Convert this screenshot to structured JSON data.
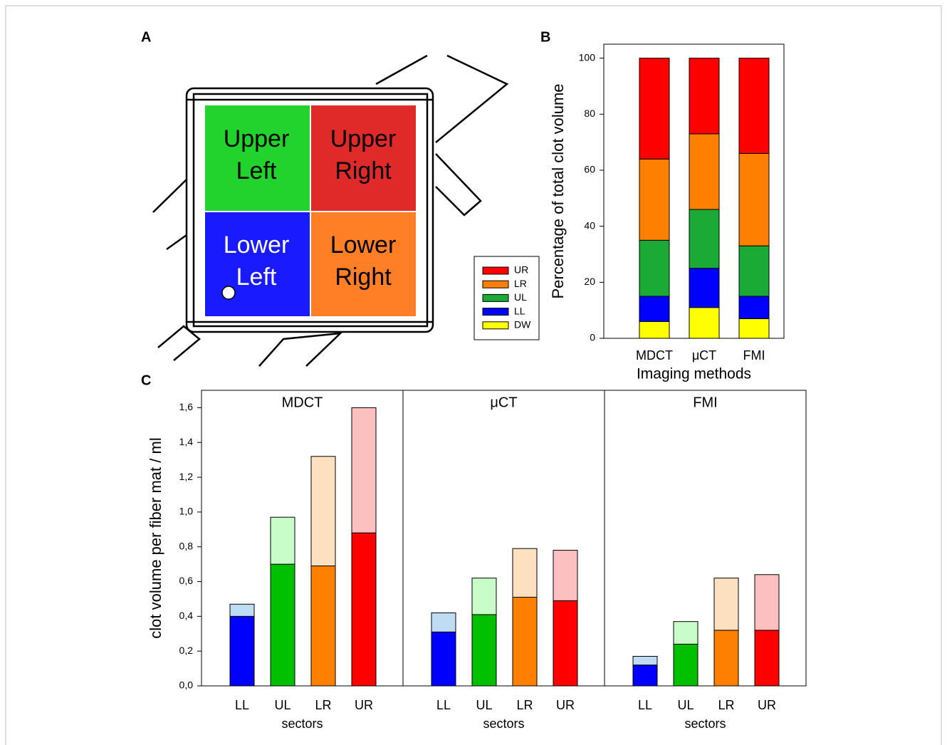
{
  "diagram": {
    "panel": "A",
    "quadrants": [
      {
        "lines": [
          "Upper",
          "Left"
        ]
      },
      {
        "lines": [
          "Upper",
          "Right"
        ]
      },
      {
        "lines": [
          "Lower",
          "Left"
        ]
      },
      {
        "lines": [
          "Lower",
          "Right"
        ]
      }
    ]
  },
  "chart_data": [
    {
      "type": "stacked_bar",
      "panel": "B",
      "ylabel": "Percentage of total clot volume",
      "xlabel": "Imaging methods",
      "categories": [
        "MDCT",
        "μCT",
        "FMI"
      ],
      "series": [
        {
          "name": "DW",
          "color": "#ffff00",
          "values": [
            6,
            11,
            7
          ]
        },
        {
          "name": "LL",
          "color": "#0000ff",
          "values": [
            9,
            14,
            8
          ]
        },
        {
          "name": "UL",
          "color": "#1aaa35",
          "values": [
            20,
            21,
            18
          ]
        },
        {
          "name": "LR",
          "color": "#ff8000",
          "values": [
            29,
            27,
            33
          ]
        },
        {
          "name": "UR",
          "color": "#ff0000",
          "values": [
            36,
            27,
            34
          ]
        }
      ],
      "ylim": [
        0,
        105
      ],
      "yticks": [
        0,
        20,
        40,
        60,
        80,
        100
      ],
      "legend": "left"
    },
    {
      "type": "stacked_bar",
      "panel": "C",
      "title": "MDCT",
      "ylabel": "clot volume per fiber mat / ml",
      "xlabel": "sectors",
      "categories": [
        "LL",
        "UL",
        "LR",
        "UR"
      ],
      "series": [
        {
          "colors": [
            "#0000ff",
            "#00c000",
            "#ff8000",
            "#ff0000"
          ],
          "values": [
            0.4,
            0.7,
            0.69,
            0.88
          ]
        },
        {
          "colors": [
            "#bfdcf5",
            "#c8fcc8",
            "#fde0c0",
            "#fcc0c0"
          ],
          "values": [
            0.07,
            0.27,
            0.63,
            0.72
          ]
        }
      ],
      "ylim": [
        0,
        1.7
      ],
      "yticks": [
        {
          "value": 0,
          "label": "0,0"
        },
        {
          "value": 0.2,
          "label": "0,2"
        },
        {
          "value": 0.4,
          "label": "0,4"
        },
        {
          "value": 0.6,
          "label": "0,6"
        },
        {
          "value": 0.8,
          "label": "0,8"
        },
        {
          "value": 1.0,
          "label": "1,0"
        },
        {
          "value": 1.2,
          "label": "1,2"
        },
        {
          "value": 1.4,
          "label": "1,4"
        },
        {
          "value": 1.6,
          "label": "1,6"
        }
      ]
    },
    {
      "type": "stacked_bar",
      "title": "μCT",
      "xlabel": "sectors",
      "categories": [
        "LL",
        "UL",
        "LR",
        "UR"
      ],
      "series": [
        {
          "colors": [
            "#0000ff",
            "#00c000",
            "#ff8000",
            "#ff0000"
          ],
          "values": [
            0.31,
            0.41,
            0.51,
            0.49
          ]
        },
        {
          "colors": [
            "#bfdcf5",
            "#c8fcc8",
            "#fde0c0",
            "#fcc0c0"
          ],
          "values": [
            0.11,
            0.21,
            0.28,
            0.29
          ]
        }
      ],
      "ylim": [
        0,
        1.7
      ]
    },
    {
      "type": "stacked_bar",
      "title": "FMI",
      "xlabel": "sectors",
      "categories": [
        "LL",
        "UL",
        "LR",
        "UR"
      ],
      "series": [
        {
          "colors": [
            "#0000ff",
            "#00c000",
            "#ff8000",
            "#ff0000"
          ],
          "values": [
            0.12,
            0.24,
            0.32,
            0.32
          ]
        },
        {
          "colors": [
            "#bfdcf5",
            "#c8fcc8",
            "#fde0c0",
            "#fcc0c0"
          ],
          "values": [
            0.05,
            0.13,
            0.3,
            0.32
          ]
        }
      ],
      "ylim": [
        0,
        1.7
      ]
    }
  ]
}
